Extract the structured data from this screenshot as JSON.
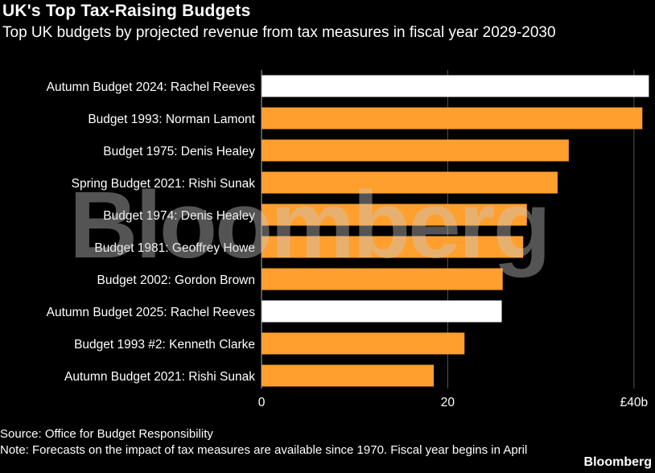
{
  "title": "UK's Top Tax-Raising Budgets",
  "subtitle": "Top UK budgets by projected revenue from tax measures in fiscal year 2029-2030",
  "source": "Source: Office for Budget Responsibility",
  "note": "Note: Forecasts on the impact of tax measures are available since 1970. Fiscal year begins in April",
  "brand": "Bloomberg",
  "watermark": "Bloomberg",
  "chart_data": {
    "type": "bar",
    "orientation": "horizontal",
    "categories": [
      "Autumn Budget 2024: Rachel Reeves",
      "Budget 1993: Norman Lamont",
      "Budget 1975: Denis Healey",
      "Spring Budget 2021: Rishi Sunak",
      "Budget 1974: Denis Healey",
      "Budget 1981: Geoffrey Howe",
      "Budget 2002: Gordon Brown",
      "Autumn Budget 2025: Rachel Reeves",
      "Budget 1993 #2: Kenneth Clarke",
      "Autumn Budget 2021: Rishi Sunak"
    ],
    "values": [
      41.6,
      40.9,
      33.0,
      31.8,
      28.5,
      28.1,
      25.9,
      25.8,
      21.8,
      18.5
    ],
    "highlight": [
      true,
      false,
      false,
      false,
      false,
      false,
      false,
      true,
      false,
      false
    ],
    "xlim": [
      0,
      42
    ],
    "xticks": [
      0,
      20,
      40
    ],
    "xtick_labels": [
      "0",
      "20",
      "£40b"
    ],
    "grid": true,
    "colors": {
      "bar": "#ff9f2d",
      "highlight": "#ffffff",
      "grid": "#555555",
      "text": "#ffffff"
    }
  }
}
